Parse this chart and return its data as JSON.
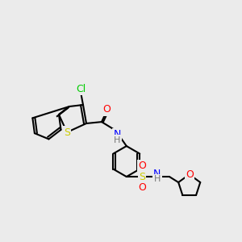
{
  "background_color": "#ebebeb",
  "atom_colors": {
    "Cl": "#00cc00",
    "S": "#cccc00",
    "O": "#ff0000",
    "N": "#0000ff",
    "H": "#777777",
    "C": "#000000"
  },
  "bond_color": "#000000",
  "bond_width": 1.5,
  "font_size": 9
}
